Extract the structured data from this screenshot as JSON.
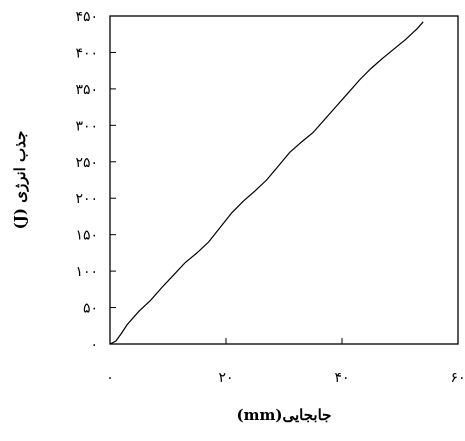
{
  "chart_data": {
    "type": "line",
    "title": "",
    "xlabel": "جابجایی(mm)",
    "ylabel": "جذب انرژی (J)",
    "xlim": [
      0,
      60
    ],
    "ylim": [
      0,
      450
    ],
    "grid": false,
    "legend": "none",
    "x_ticks": [
      0,
      20,
      40,
      60
    ],
    "y_ticks": [
      0,
      50,
      100,
      150,
      200,
      250,
      300,
      350,
      400,
      450
    ],
    "x_tick_labels": [
      "۰",
      "۲۰",
      "۴۰",
      "۶۰"
    ],
    "y_tick_labels": [
      "۰",
      "۵۰",
      "۱۰۰",
      "۱۵۰",
      "۲۰۰",
      "۲۵۰",
      "۳۰۰",
      "۳۵۰",
      "۴۰۰",
      "۴۵۰"
    ],
    "line_color": "#000000",
    "series": [
      {
        "x": [
          0,
          1,
          2,
          3,
          5,
          7,
          9,
          11,
          13,
          15,
          17,
          19,
          21,
          23,
          25,
          27,
          29,
          31,
          33,
          35,
          37,
          39,
          41,
          43,
          45,
          47,
          49,
          51,
          53,
          54
        ],
        "y": [
          0,
          4,
          15,
          27,
          45,
          60,
          78,
          95,
          112,
          125,
          140,
          160,
          180,
          196,
          210,
          225,
          244,
          263,
          277,
          290,
          308,
          326,
          344,
          362,
          378,
          392,
          405,
          418,
          433,
          442
        ]
      }
    ]
  }
}
